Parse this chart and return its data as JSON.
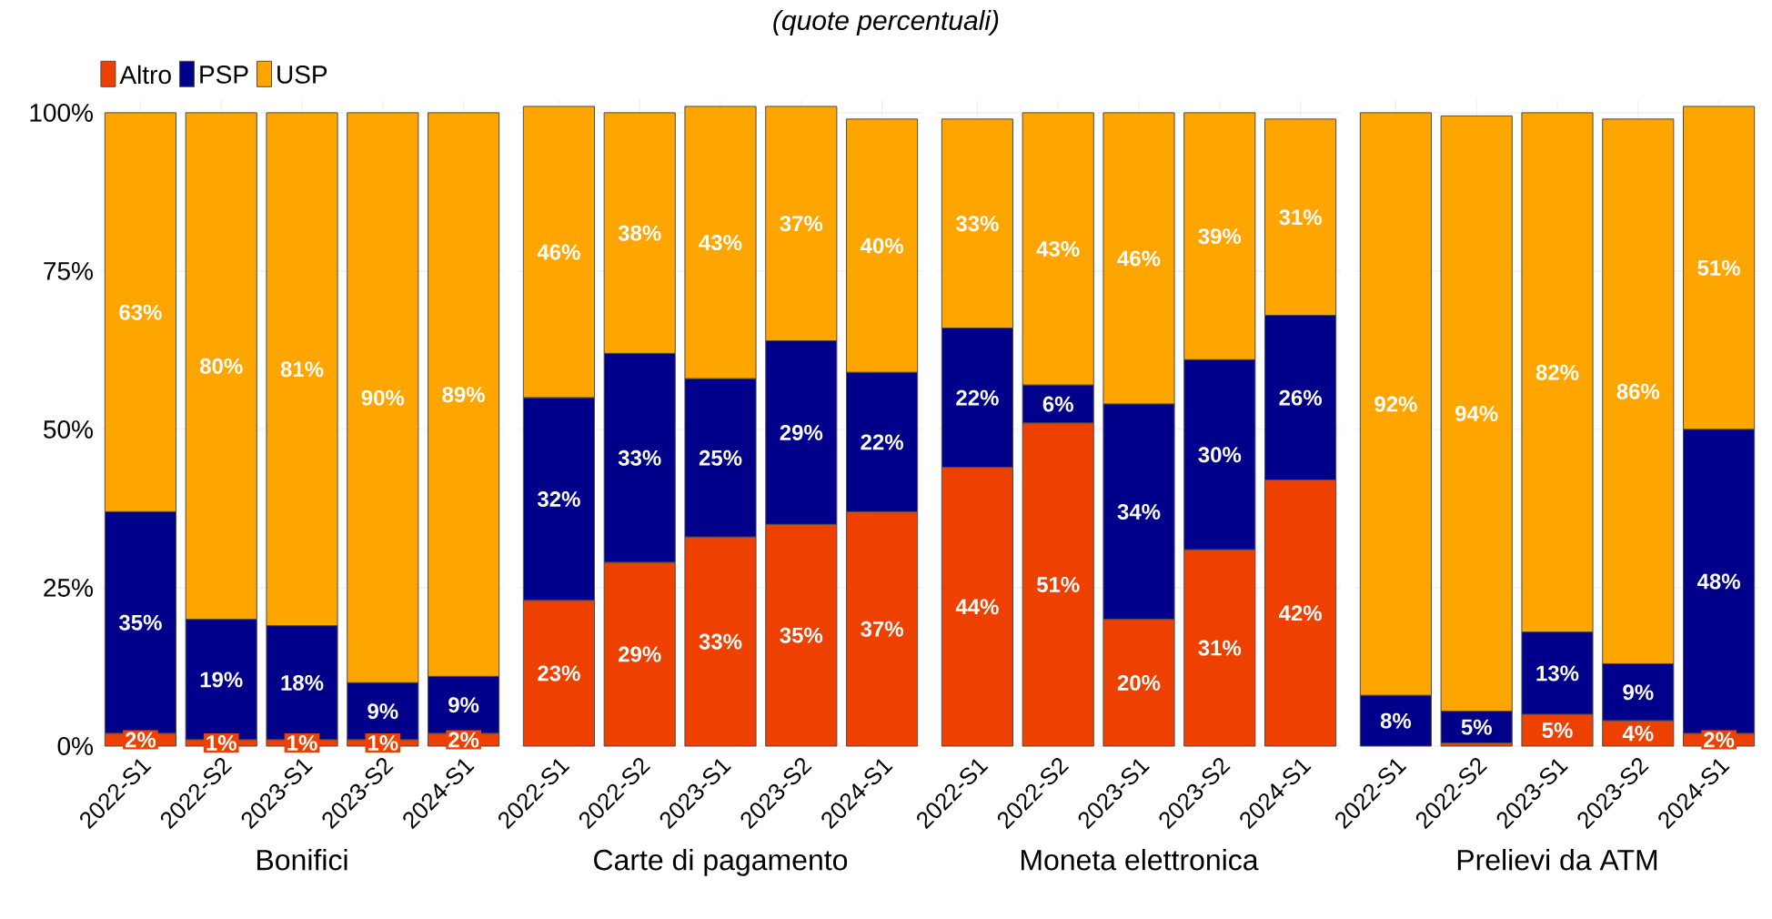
{
  "chart_data": [
    {
      "type": "bar",
      "xlabel": "Bonifici",
      "stacked": true,
      "legend": "top left",
      "grid": true,
      "categories": [
        "2022-S1",
        "2022-S2",
        "2023-S1",
        "2023-S2",
        "2024-S1"
      ],
      "ylim": [
        0,
        102
      ],
      "yticks": [
        {
          "value": 0,
          "label": "0%"
        },
        {
          "value": 25,
          "label": "25%"
        },
        {
          "value": 50,
          "label": "50%"
        },
        {
          "value": 75,
          "label": "75%"
        },
        {
          "value": 100,
          "label": "100%"
        }
      ],
      "series": [
        {
          "name": "Altro",
          "color": "#ee4000",
          "values": [
            2,
            1,
            1,
            1,
            2
          ],
          "value_labels": [
            "2%",
            "1%",
            "1%",
            "1%",
            "2%"
          ]
        },
        {
          "name": "PSP",
          "color": "#00008b",
          "values": [
            35,
            19,
            18,
            9,
            9
          ],
          "value_labels": [
            "35%",
            "19%",
            "18%",
            "9%",
            "9%"
          ]
        },
        {
          "name": "USP",
          "color": "#ffa500",
          "values": [
            63,
            80,
            81,
            90,
            89
          ],
          "value_labels": [
            "63%",
            "80%",
            "81%",
            "90%",
            "89%"
          ]
        }
      ]
    },
    {
      "type": "bar",
      "title": "(quote percentuali)",
      "xlabel": "Carte di pagamento",
      "stacked": true,
      "grid": true,
      "tick_labels": "x",
      "categories": [
        "2022-S1",
        "2022-S2",
        "2023-S1",
        "2023-S2",
        "2024-S1"
      ],
      "ylim": [
        0,
        102
      ],
      "yticks": [
        {
          "value": 0,
          "label": null
        },
        {
          "value": 25,
          "label": null
        },
        {
          "value": 50,
          "label": null
        },
        {
          "value": 75,
          "label": null
        },
        {
          "value": 100,
          "label": null
        }
      ],
      "series": [
        {
          "color": "#ee4000",
          "values": [
            23,
            29,
            33,
            35,
            37
          ],
          "value_labels": [
            "23%",
            "29%",
            "33%",
            "35%",
            "37%"
          ]
        },
        {
          "color": "#00008b",
          "values": [
            32,
            33,
            25,
            29,
            22
          ],
          "value_labels": [
            "32%",
            "33%",
            "25%",
            "29%",
            "22%"
          ]
        },
        {
          "color": "#ffa500",
          "values": [
            46,
            38,
            43,
            37,
            40
          ],
          "value_labels": [
            "46%",
            "38%",
            "43%",
            "37%",
            "40%"
          ]
        }
      ]
    },
    {
      "type": "bar",
      "xlabel": "Moneta elettronica",
      "stacked": true,
      "grid": true,
      "tick_labels": "x",
      "categories": [
        "2022-S1",
        "2022-S2",
        "2023-S1",
        "2023-S2",
        "2024-S1"
      ],
      "ylim": [
        0,
        102
      ],
      "yticks": [
        {
          "value": 0,
          "label": null
        },
        {
          "value": 25,
          "label": null
        },
        {
          "value": 50,
          "label": null
        },
        {
          "value": 75,
          "label": null
        },
        {
          "value": 100,
          "label": null
        }
      ],
      "series": [
        {
          "color": "#ee4000",
          "values": [
            44,
            51,
            20,
            31,
            42
          ],
          "value_labels": [
            "44%",
            "51%",
            "20%",
            "31%",
            "42%"
          ]
        },
        {
          "color": "#00008b",
          "values": [
            22,
            6,
            34,
            30,
            26
          ],
          "value_labels": [
            "22%",
            "6%",
            "34%",
            "30%",
            "26%"
          ]
        },
        {
          "color": "#ffa500",
          "values": [
            33,
            43,
            46,
            39,
            31
          ],
          "value_labels": [
            "33%",
            "43%",
            "46%",
            "39%",
            "31%"
          ]
        }
      ]
    },
    {
      "type": "bar",
      "xlabel": "Prelievi da ATM",
      "stacked": true,
      "grid": true,
      "tick_labels": "x",
      "categories": [
        "2022-S1",
        "2022-S2",
        "2023-S1",
        "2023-S2",
        "2024-S1"
      ],
      "ylim": [
        0,
        102
      ],
      "yticks": [
        {
          "value": 0,
          "label": null
        },
        {
          "value": 25,
          "label": null
        },
        {
          "value": 50,
          "label": null
        },
        {
          "value": 75,
          "label": null
        },
        {
          "value": 100,
          "label": null
        }
      ],
      "series": [
        {
          "color": "#ee4000",
          "values": [
            0,
            0.5,
            5,
            4,
            2
          ],
          "value_labels": [
            null,
            null,
            "5%",
            "4%",
            "2%"
          ]
        },
        {
          "color": "#00008b",
          "values": [
            8,
            5,
            13,
            9,
            48
          ],
          "value_labels": [
            "8%",
            "5%",
            "13%",
            "9%",
            "48%"
          ]
        },
        {
          "color": "#ffa500",
          "values": [
            92,
            94,
            82,
            86,
            51
          ],
          "value_labels": [
            "92%",
            "94%",
            "82%",
            "86%",
            "51%"
          ]
        }
      ]
    }
  ]
}
